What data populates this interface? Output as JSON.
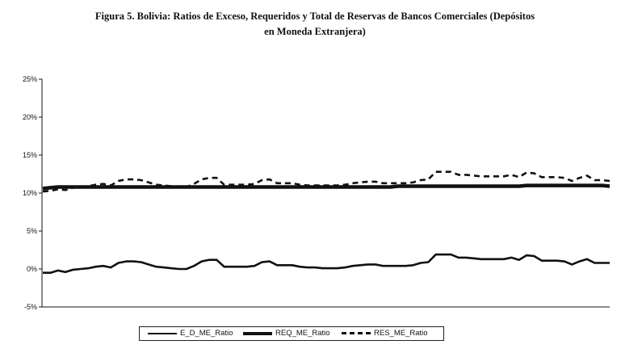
{
  "chart_data": {
    "type": "line",
    "title": "Figura 5. Bolivia: Ratios de Exceso, Requeridos y Total de Reservas de Bancos Comerciales (Depósitos en Moneda Extranjera)",
    "title_line1": "Figura 5. Bolivia: Ratios de Exceso, Requeridos y Total de Reservas de Bancos Comerciales (Depósitos",
    "title_line2": "en Moneda Extranjera)",
    "xlabel": "",
    "ylabel": "",
    "ylim": [
      -5,
      25
    ],
    "yticks": [
      -5,
      0,
      5,
      10,
      15,
      20,
      25
    ],
    "ytick_labels": [
      "-5%",
      "0%",
      "5%",
      "10%",
      "15%",
      "20%",
      "25%"
    ],
    "grid": false,
    "legend_position": "bottom",
    "series": [
      {
        "name": "E_D_ME_Ratio",
        "style": "thin-solid",
        "values": [
          -0.5,
          -0.5,
          -0.2,
          -0.4,
          -0.1,
          0.0,
          0.1,
          0.3,
          0.4,
          0.2,
          0.8,
          1.0,
          1.0,
          0.9,
          0.6,
          0.3,
          0.2,
          0.1,
          0.0,
          0.0,
          0.4,
          1.0,
          1.2,
          1.2,
          0.3,
          0.3,
          0.3,
          0.3,
          0.4,
          0.9,
          1.0,
          0.5,
          0.5,
          0.5,
          0.3,
          0.2,
          0.2,
          0.1,
          0.1,
          0.1,
          0.2,
          0.4,
          0.5,
          0.6,
          0.6,
          0.4,
          0.4,
          0.4,
          0.4,
          0.5,
          0.8,
          0.9,
          1.9,
          1.9,
          1.9,
          1.5,
          1.5,
          1.4,
          1.3,
          1.3,
          1.3,
          1.3,
          1.5,
          1.2,
          1.8,
          1.7,
          1.1,
          1.1,
          1.1,
          1.0,
          0.6,
          1.0,
          1.3,
          0.8,
          0.8,
          0.8
        ]
      },
      {
        "name": "REQ_ME_Ratio",
        "style": "thick-solid",
        "values": [
          10.6,
          10.7,
          10.8,
          10.8,
          10.8,
          10.8,
          10.8,
          10.8,
          10.8,
          10.8,
          10.8,
          10.8,
          10.8,
          10.8,
          10.8,
          10.8,
          10.8,
          10.8,
          10.8,
          10.8,
          10.8,
          10.8,
          10.8,
          10.8,
          10.8,
          10.8,
          10.8,
          10.8,
          10.8,
          10.8,
          10.8,
          10.8,
          10.8,
          10.8,
          10.8,
          10.8,
          10.8,
          10.8,
          10.8,
          10.8,
          10.8,
          10.8,
          10.8,
          10.8,
          10.8,
          10.8,
          10.8,
          10.9,
          10.9,
          10.9,
          10.9,
          10.9,
          10.9,
          10.9,
          10.9,
          10.9,
          10.9,
          10.9,
          10.9,
          10.9,
          10.9,
          10.9,
          10.9,
          10.9,
          11.0,
          11.0,
          11.0,
          11.0,
          11.0,
          11.0,
          11.0,
          11.0,
          11.0,
          11.0,
          11.0,
          10.9
        ]
      },
      {
        "name": "RES_ME_Ratio",
        "style": "dashed",
        "values": [
          10.2,
          10.3,
          10.5,
          10.4,
          10.7,
          10.8,
          10.9,
          11.1,
          11.2,
          11.0,
          11.6,
          11.8,
          11.8,
          11.7,
          11.4,
          11.1,
          11.0,
          10.9,
          10.8,
          10.8,
          11.2,
          11.8,
          12.0,
          12.0,
          11.1,
          11.1,
          11.1,
          11.1,
          11.2,
          11.7,
          11.8,
          11.3,
          11.3,
          11.3,
          11.1,
          11.0,
          11.0,
          11.0,
          11.0,
          11.0,
          11.1,
          11.3,
          11.4,
          11.5,
          11.5,
          11.3,
          11.3,
          11.3,
          11.3,
          11.4,
          11.7,
          11.8,
          12.8,
          12.8,
          12.8,
          12.4,
          12.4,
          12.3,
          12.2,
          12.2,
          12.2,
          12.2,
          12.4,
          12.1,
          12.7,
          12.6,
          12.1,
          12.1,
          12.1,
          12.0,
          11.6,
          12.0,
          12.3,
          11.7,
          11.7,
          11.6
        ]
      }
    ]
  }
}
